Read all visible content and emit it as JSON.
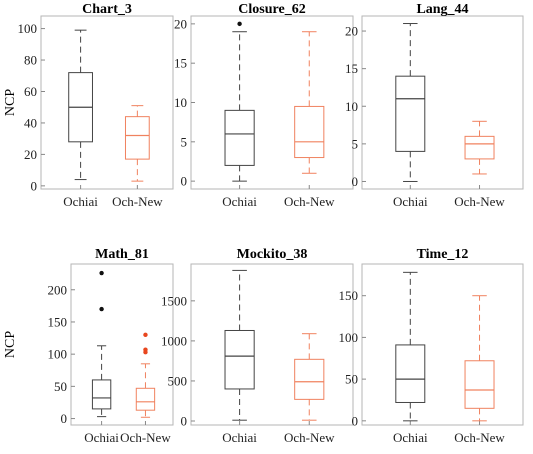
{
  "figure": {
    "ylabel": "NCP",
    "colors": {
      "Ochiai": "#444444",
      "Och-New": "#f0825f",
      "Ochiai-outlier": "#111111",
      "Och-New-outlier": "#e8461e"
    }
  },
  "chart_data": [
    {
      "type": "box",
      "title": "Chart_3",
      "ylabel": "NCP",
      "ylim": [
        -2,
        108
      ],
      "yticks": [
        0,
        20,
        40,
        60,
        80,
        100
      ],
      "categories": [
        "Ochiai",
        "Och-New"
      ],
      "series": [
        {
          "name": "Ochiai",
          "whisker_low": 4,
          "q1": 28,
          "median": 50,
          "q3": 72,
          "whisker_high": 99,
          "outliers": []
        },
        {
          "name": "Och-New",
          "whisker_low": 3,
          "q1": 17,
          "median": 32,
          "q3": 44,
          "whisker_high": 51,
          "outliers": []
        }
      ]
    },
    {
      "type": "box",
      "title": "Closure_62",
      "ylim": [
        -1,
        21
      ],
      "yticks": [
        0,
        5,
        10,
        15,
        20
      ],
      "categories": [
        "Ochiai",
        "Och-New"
      ],
      "series": [
        {
          "name": "Ochiai",
          "whisker_low": 0,
          "q1": 2,
          "median": 6,
          "q3": 9,
          "whisker_high": 19,
          "outliers": [
            20
          ]
        },
        {
          "name": "Och-New",
          "whisker_low": 1,
          "q1": 3,
          "median": 5,
          "q3": 9.5,
          "whisker_high": 19,
          "outliers": []
        }
      ]
    },
    {
      "type": "box",
      "title": "Lang_44",
      "ylim": [
        -1,
        22
      ],
      "yticks": [
        0,
        5,
        10,
        15,
        20
      ],
      "categories": [
        "Ochiai",
        "Och-New"
      ],
      "series": [
        {
          "name": "Ochiai",
          "whisker_low": 0,
          "q1": 4,
          "median": 11,
          "q3": 14,
          "whisker_high": 21,
          "outliers": []
        },
        {
          "name": "Och-New",
          "whisker_low": 1,
          "q1": 3,
          "median": 5,
          "q3": 6,
          "whisker_high": 8,
          "outliers": []
        }
      ]
    },
    {
      "type": "box",
      "title": "Math_81",
      "ylabel": "NCP",
      "ylim": [
        -10,
        240
      ],
      "yticks": [
        0,
        50,
        100,
        150,
        200
      ],
      "categories": [
        "Ochiai",
        "Och-New"
      ],
      "series": [
        {
          "name": "Ochiai",
          "whisker_low": 3,
          "q1": 15,
          "median": 32,
          "q3": 60,
          "whisker_high": 113,
          "outliers": [
            170,
            226
          ]
        },
        {
          "name": "Och-New",
          "whisker_low": 2,
          "q1": 13,
          "median": 26,
          "q3": 47,
          "whisker_high": 85,
          "outliers": [
            103,
            107,
            130
          ]
        }
      ]
    },
    {
      "type": "box",
      "title": "Mockito_38",
      "ylim": [
        -50,
        1960
      ],
      "yticks": [
        0,
        500,
        1000,
        1500
      ],
      "categories": [
        "Ochiai",
        "Och-New"
      ],
      "series": [
        {
          "name": "Ochiai",
          "whisker_low": 10,
          "q1": 400,
          "median": 810,
          "q3": 1130,
          "whisker_high": 1880,
          "outliers": []
        },
        {
          "name": "Och-New",
          "whisker_low": 10,
          "q1": 270,
          "median": 490,
          "q3": 770,
          "whisker_high": 1090,
          "outliers": []
        }
      ]
    },
    {
      "type": "box",
      "title": "Time_12",
      "ylim": [
        -5,
        188
      ],
      "yticks": [
        0,
        50,
        100,
        150
      ],
      "categories": [
        "Ochiai",
        "Och-New"
      ],
      "series": [
        {
          "name": "Ochiai",
          "whisker_low": 0,
          "q1": 22,
          "median": 50,
          "q3": 91,
          "whisker_high": 178,
          "outliers": []
        },
        {
          "name": "Och-New",
          "whisker_low": 0,
          "q1": 15,
          "median": 37,
          "q3": 72,
          "whisker_high": 150,
          "outliers": []
        }
      ]
    }
  ]
}
